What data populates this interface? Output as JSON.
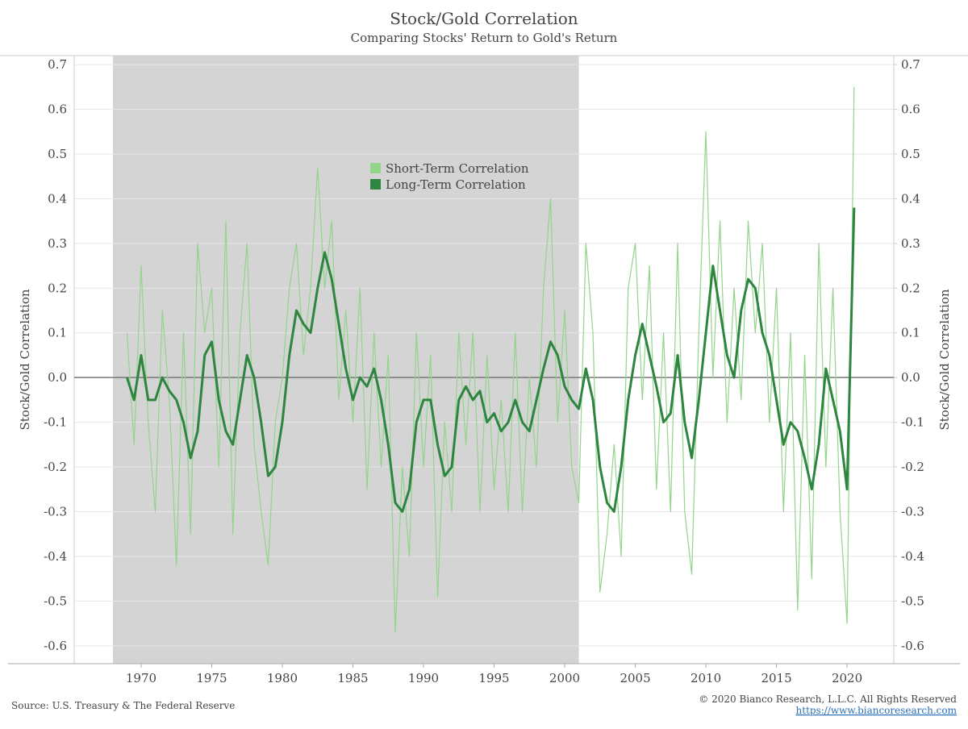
{
  "chart_data": {
    "type": "line",
    "title": "Stock/Gold Correlation",
    "subtitle": "Comparing Stocks' Return to Gold's Return",
    "ylabel": "Stock/Gold Correlation",
    "y2label": "Stock/Gold Correlation",
    "source": "Source: U.S. Treasury & The Federal Reserve",
    "copyright": "© 2020 Bianco Research, L.L.C. All Rights Reserved",
    "url": "https://www.biancoresearch.com",
    "shaded_span": [
      1968,
      2001
    ],
    "shade_color": "#d4d4d4",
    "grid": true,
    "legend": "top-center",
    "xlim": [
      1965.26,
      2023.31
    ],
    "xticks": [
      1970,
      1975,
      1980,
      1985,
      1990,
      1995,
      2000,
      2005,
      2010,
      2015,
      2020
    ],
    "ylim": [
      -0.64,
      0.72
    ],
    "yticks": [
      -0.6,
      -0.5,
      -0.4,
      -0.3,
      -0.2,
      -0.1,
      {
        "value": 0,
        "label": "0.0"
      },
      0.1,
      0.2,
      0.3,
      0.4,
      0.5,
      0.6,
      0.7
    ],
    "y2lim": [
      -0.64,
      0.72
    ],
    "y2ticks": [
      -0.6,
      -0.5,
      -0.4,
      -0.3,
      -0.2,
      -0.1,
      {
        "value": 0,
        "label": "0.0"
      },
      0.1,
      0.2,
      0.3,
      0.4,
      0.5,
      0.6,
      0.7
    ],
    "x": [
      1969,
      1969.5,
      1970,
      1970.5,
      1971,
      1971.5,
      1972,
      1972.5,
      1973,
      1973.5,
      1974,
      1974.5,
      1975,
      1975.5,
      1976,
      1976.5,
      1977,
      1977.5,
      1978,
      1978.5,
      1979,
      1979.5,
      1980,
      1980.5,
      1981,
      1981.5,
      1982,
      1982.5,
      1983,
      1983.5,
      1984,
      1984.5,
      1985,
      1985.5,
      1986,
      1986.5,
      1987,
      1987.5,
      1988,
      1988.5,
      1989,
      1989.5,
      1990,
      1990.5,
      1991,
      1991.5,
      1992,
      1992.5,
      1993,
      1993.5,
      1994,
      1994.5,
      1995,
      1995.5,
      1996,
      1996.5,
      1997,
      1997.5,
      1998,
      1998.5,
      1999,
      1999.5,
      2000,
      2000.5,
      2001,
      2001.5,
      2002,
      2002.5,
      2003,
      2003.5,
      2004,
      2004.5,
      2005,
      2005.5,
      2006,
      2006.5,
      2007,
      2007.5,
      2008,
      2008.5,
      2009,
      2009.5,
      2010,
      2010.5,
      2011,
      2011.5,
      2012,
      2012.5,
      2013,
      2013.5,
      2014,
      2014.5,
      2015,
      2015.5,
      2016,
      2016.5,
      2017,
      2017.5,
      2018,
      2018.5,
      2019,
      2019.5,
      2020,
      2020.5
    ],
    "series": [
      {
        "name": "Short-Term Correlation",
        "color": "#93d48b",
        "width": 1.2,
        "values": [
          0.1,
          -0.15,
          0.25,
          -0.1,
          -0.3,
          0.15,
          -0.05,
          -0.42,
          0.1,
          -0.35,
          0.3,
          0.1,
          0.2,
          -0.2,
          0.35,
          -0.35,
          0.1,
          0.3,
          -0.15,
          -0.3,
          -0.42,
          -0.1,
          0.0,
          0.2,
          0.3,
          0.05,
          0.2,
          0.47,
          0.2,
          0.35,
          -0.05,
          0.15,
          -0.1,
          0.2,
          -0.25,
          0.1,
          -0.2,
          0.05,
          -0.57,
          -0.2,
          -0.4,
          0.1,
          -0.2,
          0.05,
          -0.49,
          -0.1,
          -0.3,
          0.1,
          -0.15,
          0.1,
          -0.3,
          0.05,
          -0.25,
          -0.05,
          -0.3,
          0.1,
          -0.3,
          0.0,
          -0.2,
          0.2,
          0.4,
          -0.1,
          0.15,
          -0.2,
          -0.28,
          0.3,
          0.1,
          -0.48,
          -0.35,
          -0.15,
          -0.4,
          0.2,
          0.3,
          -0.05,
          0.25,
          -0.25,
          0.1,
          -0.3,
          0.3,
          -0.3,
          -0.44,
          0.1,
          0.55,
          0.0,
          0.35,
          -0.1,
          0.2,
          -0.05,
          0.35,
          0.1,
          0.3,
          -0.1,
          0.2,
          -0.3,
          0.1,
          -0.52,
          0.05,
          -0.45,
          0.3,
          -0.2,
          0.2,
          -0.3,
          -0.55,
          0.65
        ]
      },
      {
        "name": "Long-Term Correlation",
        "color": "#2e8540",
        "width": 3,
        "values": [
          0.0,
          -0.05,
          0.05,
          -0.05,
          -0.05,
          0.0,
          -0.03,
          -0.05,
          -0.1,
          -0.18,
          -0.12,
          0.05,
          0.08,
          -0.05,
          -0.12,
          -0.15,
          -0.05,
          0.05,
          0.0,
          -0.1,
          -0.22,
          -0.2,
          -0.1,
          0.05,
          0.15,
          0.12,
          0.1,
          0.2,
          0.28,
          0.22,
          0.12,
          0.02,
          -0.05,
          0.0,
          -0.02,
          0.02,
          -0.05,
          -0.15,
          -0.28,
          -0.3,
          -0.25,
          -0.1,
          -0.05,
          -0.05,
          -0.15,
          -0.22,
          -0.2,
          -0.05,
          -0.02,
          -0.05,
          -0.03,
          -0.1,
          -0.08,
          -0.12,
          -0.1,
          -0.05,
          -0.1,
          -0.12,
          -0.05,
          0.02,
          0.08,
          0.05,
          -0.02,
          -0.05,
          -0.07,
          0.02,
          -0.05,
          -0.2,
          -0.28,
          -0.3,
          -0.2,
          -0.05,
          0.05,
          0.12,
          0.05,
          -0.02,
          -0.1,
          -0.08,
          0.05,
          -0.1,
          -0.18,
          -0.05,
          0.1,
          0.25,
          0.15,
          0.05,
          0.0,
          0.15,
          0.22,
          0.2,
          0.1,
          0.05,
          -0.05,
          -0.15,
          -0.1,
          -0.12,
          -0.18,
          -0.25,
          -0.15,
          0.02,
          -0.05,
          -0.12,
          -0.25,
          0.38
        ]
      }
    ]
  }
}
